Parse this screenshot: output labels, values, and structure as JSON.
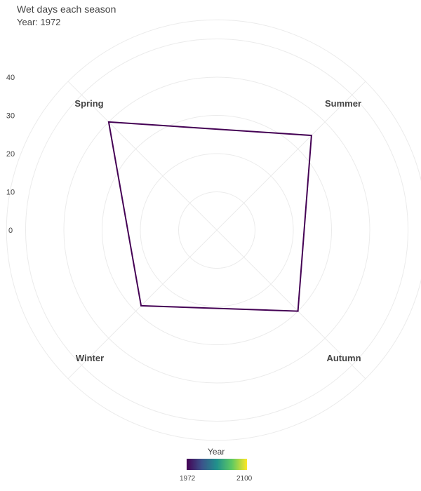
{
  "chart_data": {
    "type": "radar",
    "title": "Wet days each season",
    "subtitle": "Year: 1972",
    "categories": [
      "Spring",
      "Summer",
      "Autumn",
      "Winter"
    ],
    "series": [
      {
        "name": "1972",
        "values": [
          30,
          25,
          20,
          18
        ],
        "color": "#440154"
      }
    ],
    "radial_ticks": [
      0,
      10,
      20,
      30,
      40
    ],
    "radial_range": [
      -10,
      45
    ],
    "grid": true,
    "legend": {
      "title": "Year",
      "min_label": "1972",
      "max_label": "2100",
      "colors": [
        "#440154",
        "#3b528b",
        "#21918c",
        "#5ec962",
        "#fde725"
      ],
      "position": "bottom"
    }
  }
}
